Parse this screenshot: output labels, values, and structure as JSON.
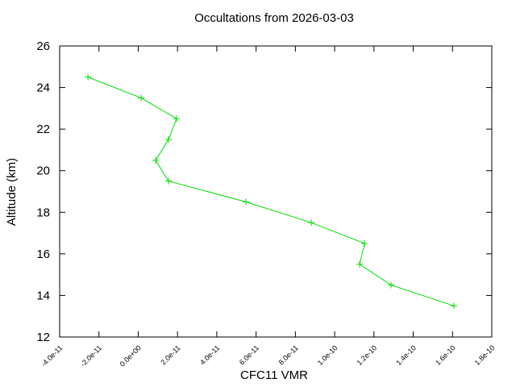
{
  "chart_data": {
    "type": "line",
    "title": "Occultations from 2026-03-03",
    "xlabel": "CFC11 VMR",
    "ylabel": "Altitude (km)",
    "x": [
      -2.56e-11,
      1.5e-12,
      1.95e-11,
      1.54e-11,
      8.85e-12,
      1.54e-11,
      5.48e-11,
      8.81e-11,
      1.152e-10,
      1.127e-10,
      1.287e-10,
      1.607e-10
    ],
    "values": [
      24.5,
      23.5,
      22.5,
      21.5,
      20.5,
      19.5,
      18.5,
      17.5,
      16.5,
      15.5,
      14.5,
      13.5
    ],
    "color": "#00dd00",
    "xlim": [
      -4e-11,
      1.8e-10
    ],
    "xticks": [
      {
        "value": -4e-11,
        "label": "-4.0e-11"
      },
      {
        "value": -2e-11,
        "label": "-2.0e-11"
      },
      {
        "value": 0,
        "label": "0.0e+00"
      },
      {
        "value": 2e-11,
        "label": "2.0e-11"
      },
      {
        "value": 4e-11,
        "label": "4.0e-11"
      },
      {
        "value": 6e-11,
        "label": "6.0e-11"
      },
      {
        "value": 8e-11,
        "label": "8.0e-11"
      },
      {
        "value": 1e-10,
        "label": "1.0e-10"
      },
      {
        "value": 1.2e-10,
        "label": "1.2e-10"
      },
      {
        "value": 1.4e-10,
        "label": "1.4e-10"
      },
      {
        "value": 1.6e-10,
        "label": "1.6e-10"
      },
      {
        "value": 1.8e-10,
        "label": "1.8e-10"
      }
    ],
    "ylim": [
      12,
      26
    ],
    "yticks": [
      12,
      14,
      16,
      18,
      20,
      22,
      24,
      26
    ],
    "grid": false,
    "markers": true
  }
}
